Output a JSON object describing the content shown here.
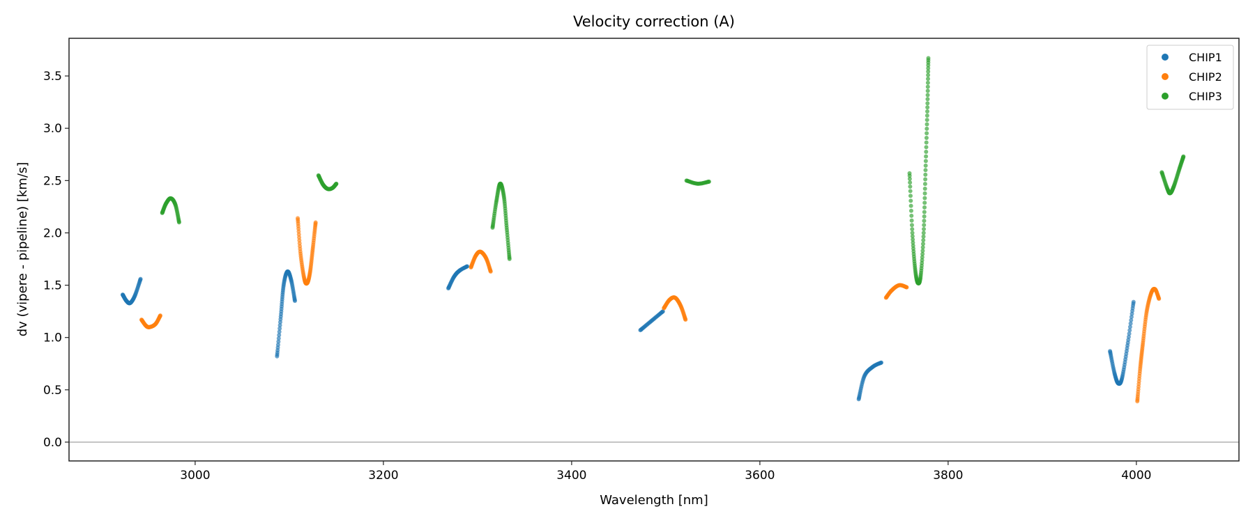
{
  "chart_data": {
    "type": "scatter",
    "title": "Velocity correction (A)",
    "xlabel": "Wavelength [nm]",
    "ylabel": "dv (vipere - pipeline) [km/s]",
    "xlim": [
      2866,
      4109
    ],
    "ylim": [
      -0.18,
      3.86
    ],
    "xticks": [
      3000,
      3200,
      3400,
      3600,
      3800,
      4000
    ],
    "xtick_labels": [
      "3000",
      "3200",
      "3400",
      "3600",
      "3800",
      "4000"
    ],
    "yticks": [
      0.0,
      0.5,
      1.0,
      1.5,
      2.0,
      2.5,
      3.0,
      3.5
    ],
    "ytick_labels": [
      "0.0",
      "0.5",
      "1.0",
      "1.5",
      "2.0",
      "2.5",
      "3.0",
      "3.5"
    ],
    "hline": 0.0,
    "grid": false,
    "legend_position": "top-right",
    "series": [
      {
        "name": "CHIP1",
        "color": "#1f77b4",
        "segments": [
          [
            [
              2923,
              1.41
            ],
            [
              2927,
              1.35
            ],
            [
              2931,
              1.33
            ],
            [
              2936,
              1.4
            ],
            [
              2942,
              1.56
            ]
          ],
          [
            [
              3087,
              0.82
            ],
            [
              3091,
              1.2
            ],
            [
              3094,
              1.5
            ],
            [
              3098,
              1.63
            ],
            [
              3102,
              1.55
            ],
            [
              3106,
              1.35
            ]
          ],
          [
            [
              3269,
              1.47
            ],
            [
              3275,
              1.58
            ],
            [
              3281,
              1.64
            ],
            [
              3289,
              1.68
            ]
          ],
          [
            [
              3473,
              1.07
            ],
            [
              3485,
              1.16
            ],
            [
              3497,
              1.25
            ]
          ],
          [
            [
              3705,
              0.41
            ],
            [
              3711,
              0.63
            ],
            [
              3720,
              0.72
            ],
            [
              3729,
              0.76
            ]
          ],
          [
            [
              3972,
              0.87
            ],
            [
              3977,
              0.65
            ],
            [
              3981,
              0.56
            ],
            [
              3985,
              0.62
            ],
            [
              3991,
              0.95
            ],
            [
              3997,
              1.34
            ]
          ]
        ]
      },
      {
        "name": "CHIP2",
        "color": "#ff7f0e",
        "segments": [
          [
            [
              2943,
              1.17
            ],
            [
              2948,
              1.11
            ],
            [
              2952,
              1.1
            ],
            [
              2958,
              1.13
            ],
            [
              2963,
              1.21
            ]
          ],
          [
            [
              3109,
              2.14
            ],
            [
              3112,
              1.8
            ],
            [
              3116,
              1.56
            ],
            [
              3119,
              1.52
            ],
            [
              3122,
              1.62
            ],
            [
              3125,
              1.85
            ],
            [
              3128,
              2.1
            ]
          ],
          [
            [
              3293,
              1.67
            ],
            [
              3298,
              1.78
            ],
            [
              3303,
              1.82
            ],
            [
              3309,
              1.76
            ],
            [
              3314,
              1.63
            ]
          ],
          [
            [
              3498,
              1.28
            ],
            [
              3504,
              1.36
            ],
            [
              3510,
              1.38
            ],
            [
              3516,
              1.3
            ],
            [
              3521,
              1.17
            ]
          ],
          [
            [
              3734,
              1.38
            ],
            [
              3740,
              1.45
            ],
            [
              3748,
              1.5
            ],
            [
              3756,
              1.48
            ]
          ],
          [
            [
              4001,
              0.39
            ],
            [
              4004,
              0.7
            ],
            [
              4007,
              0.95
            ],
            [
              4011,
              1.25
            ],
            [
              4016,
              1.43
            ],
            [
              4020,
              1.46
            ],
            [
              4024,
              1.37
            ]
          ]
        ]
      },
      {
        "name": "CHIP3",
        "color": "#2ca02c",
        "segments": [
          [
            [
              2965,
              2.19
            ],
            [
              2969,
              2.28
            ],
            [
              2974,
              2.33
            ],
            [
              2979,
              2.27
            ],
            [
              2983,
              2.1
            ]
          ],
          [
            [
              3131,
              2.55
            ],
            [
              3136,
              2.46
            ],
            [
              3141,
              2.42
            ],
            [
              3146,
              2.43
            ],
            [
              3150,
              2.47
            ]
          ],
          [
            [
              3316,
              2.05
            ],
            [
              3320,
              2.3
            ],
            [
              3324,
              2.47
            ],
            [
              3328,
              2.35
            ],
            [
              3331,
              2.05
            ],
            [
              3334,
              1.75
            ]
          ],
          [
            [
              3522,
              2.5
            ],
            [
              3534,
              2.47
            ],
            [
              3546,
              2.49
            ]
          ],
          [
            [
              3759,
              2.57
            ],
            [
              3762,
              2.0
            ],
            [
              3765,
              1.65
            ],
            [
              3768,
              1.52
            ],
            [
              3771,
              1.6
            ],
            [
              3774,
              2.0
            ],
            [
              3776,
              2.6
            ],
            [
              3778,
              3.2
            ],
            [
              3779,
              3.67
            ]
          ],
          [
            [
              4027,
              2.58
            ],
            [
              4033,
              2.42
            ],
            [
              4036,
              2.38
            ],
            [
              4040,
              2.45
            ],
            [
              4046,
              2.62
            ],
            [
              4050,
              2.73
            ]
          ]
        ]
      }
    ]
  }
}
